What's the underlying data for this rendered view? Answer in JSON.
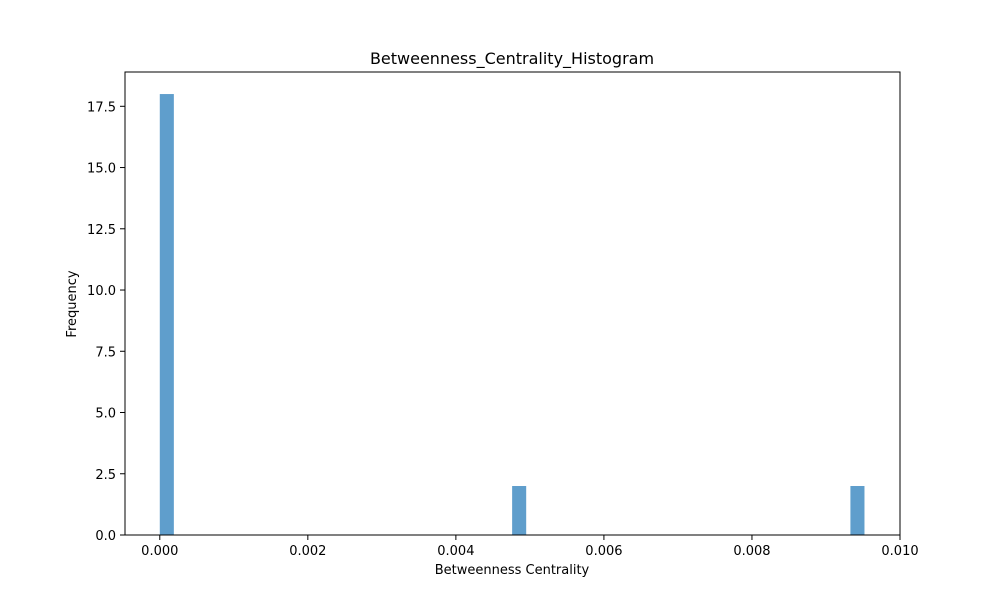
{
  "chart_data": {
    "type": "bar",
    "title": "Betweenness_Centrality_Histogram",
    "xlabel": "Betweenness Centrality",
    "ylabel": "Frequency",
    "xlim": [
      -0.00047,
      0.01
    ],
    "ylim": [
      0,
      18.9
    ],
    "xticks": [
      0.0,
      0.002,
      0.004,
      0.006,
      0.008,
      0.01
    ],
    "xtick_labels": [
      "0.000",
      "0.002",
      "0.004",
      "0.006",
      "0.008",
      "0.010"
    ],
    "yticks": [
      0,
      2.5,
      5,
      7.5,
      10,
      12.5,
      15,
      17.5
    ],
    "ytick_labels": [
      "0.0",
      "2.5",
      "5.0",
      "7.5",
      "10.0",
      "12.5",
      "15.0",
      "17.5"
    ],
    "bar_color": "#5f9ecc",
    "bars": [
      {
        "x_start": 0.0,
        "x_end": 0.00019,
        "count": 18
      },
      {
        "x_start": 0.00476,
        "x_end": 0.00495,
        "count": 2
      },
      {
        "x_start": 0.00933,
        "x_end": 0.00952,
        "count": 2
      }
    ],
    "grid": false,
    "legend": "none"
  }
}
